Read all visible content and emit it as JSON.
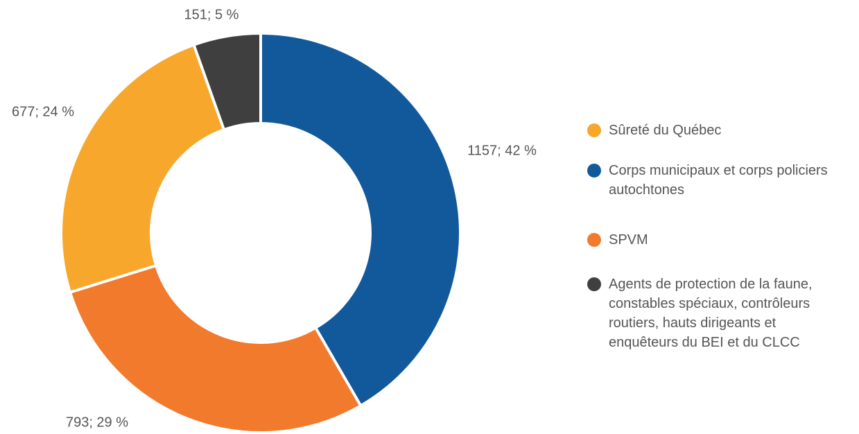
{
  "chart_data": {
    "type": "donut",
    "categories": [
      "Corps municipaux et corps policiers autochtones",
      "SPVM",
      "Sûreté du Québec",
      "Agents de protection de la faune, constables spéciaux, contrôleurs routiers, hauts dirigeants et enquêteurs du BEI et du CLCC"
    ],
    "values": [
      1157,
      793,
      677,
      151
    ],
    "value_labels": [
      "1157; 42 %",
      "793; 29 %",
      "677; 24 %",
      "151; 5 %"
    ],
    "colors": [
      "#12599c",
      "#f27a2c",
      "#f7a82c",
      "#3f3f3f"
    ],
    "legend": "right"
  }
}
